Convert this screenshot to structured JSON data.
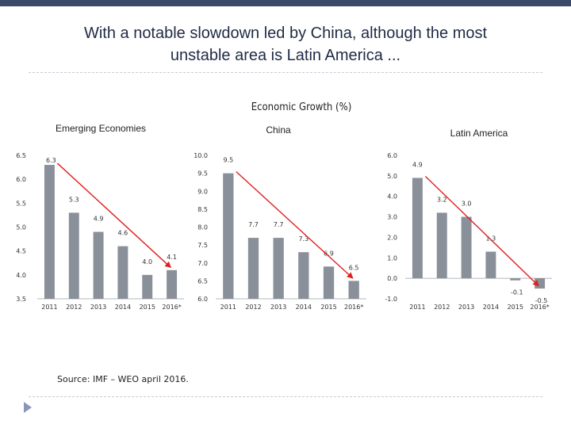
{
  "slide": {
    "title_line1": "With a notable slowdown led by China, although the most",
    "title_line2": "unstable area is Latin America ...",
    "subtitle": "Economic Growth (%)",
    "source": "Source: IMF – WEO april 2016."
  },
  "colors": {
    "bar": "#8a9099",
    "arrow": "#e02020",
    "topbar": "#3b4a6b"
  },
  "chart_data": [
    {
      "type": "bar",
      "title": "Emerging Economies",
      "categories": [
        "2011",
        "2012",
        "2013",
        "2014",
        "2015",
        "2016*"
      ],
      "values": [
        6.3,
        5.3,
        4.9,
        4.6,
        4.0,
        4.1
      ],
      "value_labels": [
        "6.3",
        "5.3",
        "4.9",
        "4.6",
        "4.0",
        "4.1"
      ],
      "ylim": [
        3.5,
        6.5
      ],
      "yticks": [
        "3.5",
        "4.0",
        "4.5",
        "5.0",
        "5.5",
        "6.0",
        "6.5"
      ],
      "trend_arrow": {
        "from": "2011",
        "to": "2016*"
      }
    },
    {
      "type": "bar",
      "title": "China",
      "categories": [
        "2011",
        "2012",
        "2013",
        "2014",
        "2015",
        "2016*"
      ],
      "values": [
        9.5,
        7.7,
        7.7,
        7.3,
        6.9,
        6.5
      ],
      "value_labels": [
        "9.5",
        "7.7",
        "7.7",
        "7.3",
        "6.9",
        "6.5"
      ],
      "ylim": [
        6.0,
        10.0
      ],
      "yticks": [
        "6.0",
        "6.5",
        "7.0",
        "7.5",
        "8.0",
        "8.5",
        "9.0",
        "9.5",
        "10.0"
      ],
      "trend_arrow": {
        "from": "2011",
        "to": "2016*"
      }
    },
    {
      "type": "bar",
      "title": "Latin America",
      "categories": [
        "2011",
        "2012",
        "2013",
        "2014",
        "2015",
        "2016*"
      ],
      "values": [
        4.9,
        3.2,
        3.0,
        1.3,
        -0.1,
        -0.5
      ],
      "value_labels": [
        "4.9",
        "3.2",
        "3.0",
        "1.3",
        "-0.1",
        "-0.5"
      ],
      "ylim": [
        -1.0,
        6.0
      ],
      "yticks": [
        "-1.0",
        "0.0",
        "1.0",
        "2.0",
        "3.0",
        "4.0",
        "5.0",
        "6.0"
      ],
      "trend_arrow": {
        "from": "2011",
        "to": "2016*"
      }
    }
  ]
}
